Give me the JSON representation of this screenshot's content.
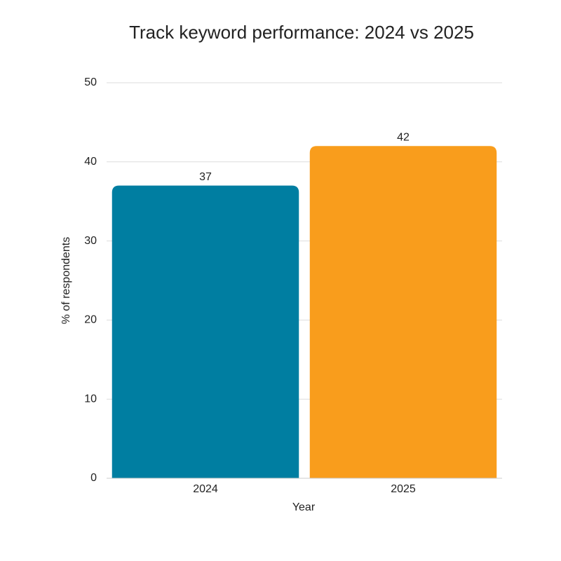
{
  "chart_data": {
    "type": "bar",
    "title": "Track keyword performance: 2024 vs 2025",
    "x_label": "Year",
    "y_label": "% of respondents",
    "categories": [
      "2024",
      "2025"
    ],
    "values": [
      37,
      42
    ],
    "colors": [
      "#007ea1",
      "#f99d1c"
    ],
    "ylim": [
      0,
      50
    ],
    "yticks": [
      0,
      10,
      20,
      30,
      40,
      50
    ],
    "grid": true
  }
}
